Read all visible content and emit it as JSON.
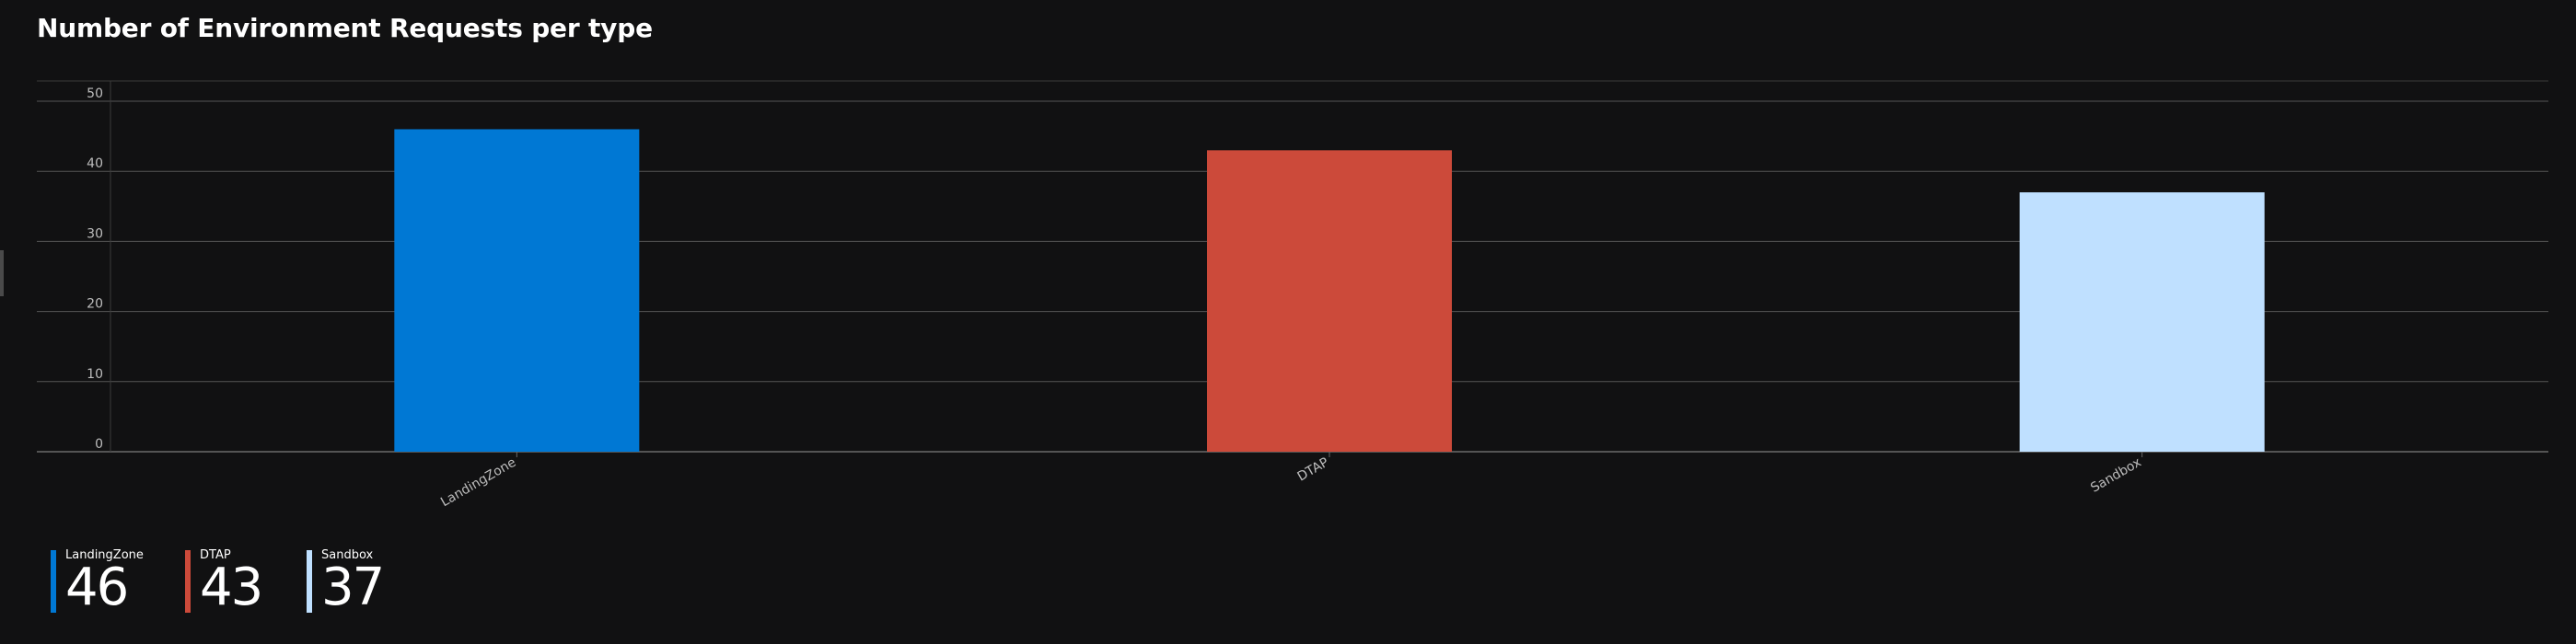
{
  "title": "Number of Environment Requests per type",
  "chart_data": {
    "type": "bar",
    "categories": [
      "LandingZone",
      "DTAP",
      "Sandbox"
    ],
    "values": [
      46,
      43,
      37
    ],
    "colors": [
      "#0078d4",
      "#cc4a3a",
      "#bfe0ff"
    ],
    "ylim": [
      0,
      50
    ],
    "yticks": [
      0,
      10,
      20,
      30,
      40,
      50
    ],
    "grid": true,
    "legend": "bottom-left",
    "xlabel": "",
    "ylabel": ""
  },
  "legend": {
    "items": [
      {
        "label": "LandingZone",
        "value": "46",
        "color": "#0078d4"
      },
      {
        "label": "DTAP",
        "value": "43",
        "color": "#cc4a3a"
      },
      {
        "label": "Sandbox",
        "value": "37",
        "color": "#bfe0ff"
      }
    ]
  }
}
